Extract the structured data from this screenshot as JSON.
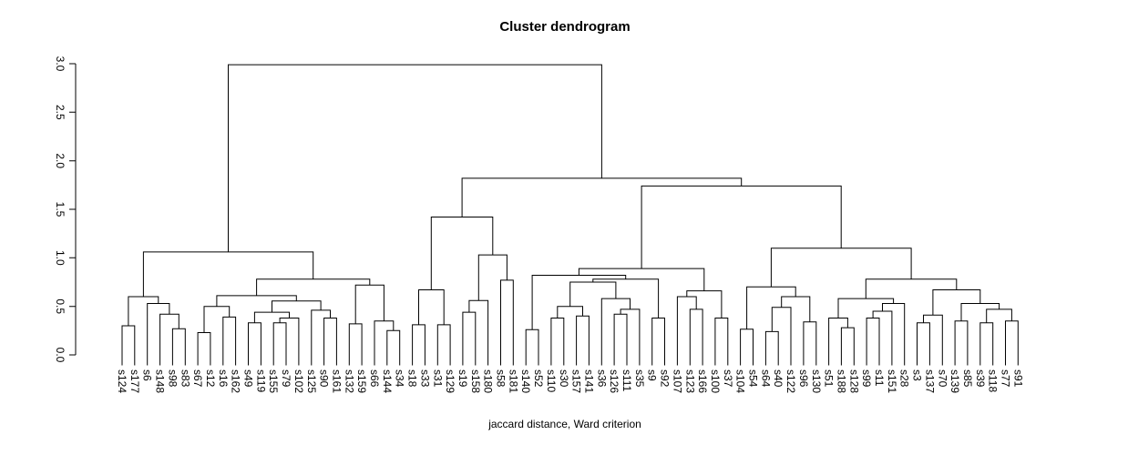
{
  "chart_data": {
    "type": "dendrogram",
    "title": "Cluster dendrogram",
    "xlabel": "jaccard distance, Ward criterion",
    "ylabel": "",
    "ylim": [
      0,
      3
    ],
    "yticks": [
      "0.0",
      "0.5",
      "1.0",
      "1.5",
      "2.0",
      "2.5",
      "3.0"
    ],
    "grid": false,
    "legend": "none",
    "colors": {
      "r": "#FF0000",
      "c": "#00FFFF"
    },
    "leaves": {
      "labels": [
        "s124",
        "s177",
        "s6",
        "s148",
        "s98",
        "s83",
        "s67",
        "s12",
        "s16",
        "s162",
        "s49",
        "s119",
        "s155",
        "s79",
        "s102",
        "s125",
        "s90",
        "s161",
        "s132",
        "s159",
        "s66",
        "s144",
        "s34",
        "s18",
        "s33",
        "s31",
        "s129",
        "s19",
        "s158",
        "s180",
        "s58",
        "s181",
        "s140",
        "s52",
        "s110",
        "s30",
        "s157",
        "s141",
        "s36",
        "s126",
        "s111",
        "s35",
        "s9",
        "s92",
        "s107",
        "s123",
        "s166",
        "s100",
        "s37",
        "s104",
        "s54",
        "s64",
        "s40",
        "s122",
        "s96",
        "s130",
        "s51",
        "s188",
        "s128",
        "s99",
        "s11",
        "s151",
        "s28",
        "s3",
        "s137",
        "s70",
        "s139",
        "s85",
        "s39",
        "s118",
        "s77",
        "s91"
      ],
      "colors": [
        "c",
        "c",
        "r",
        "c",
        "r",
        "r",
        "c",
        "c",
        "r",
        "r",
        "c",
        "r",
        "r",
        "r",
        "r",
        "c",
        "r",
        "r",
        "r",
        "c",
        "r",
        "r",
        "r",
        "r",
        "r",
        "r",
        "r",
        "r",
        "c",
        "r",
        "r",
        "r",
        "c",
        "c",
        "c",
        "c",
        "c",
        "c",
        "c",
        "r",
        "c",
        "r",
        "c",
        "r",
        "c",
        "c",
        "r",
        "r",
        "r",
        "c",
        "c",
        "c",
        "c",
        "c",
        "r",
        "c",
        "r",
        "c",
        "c",
        "r",
        "r",
        "r",
        "r",
        "c",
        "c",
        "c",
        "c",
        "c",
        "r",
        "c",
        "r",
        "c"
      ]
    },
    "tree": [
      2.99,
      [
        1.06,
        [
          0.6,
          [
            0.3,
            "s124",
            "s177"
          ],
          [
            0.53,
            "s6",
            [
              0.42,
              "s148",
              [
                0.27,
                "s98",
                "s83"
              ]
            ]
          ]
        ],
        [
          0.78,
          [
            0.61,
            [
              0.5,
              [
                0.23,
                "s67",
                "s12"
              ],
              [
                0.39,
                "s16",
                "s162"
              ]
            ],
            [
              0.555,
              [
                0.44,
                [
                  0.33,
                  "s49",
                  "s119"
                ],
                [
                  0.38,
                  [
                    0.33,
                    "s155",
                    "s79"
                  ],
                  "s102"
                ]
              ],
              [
                0.46,
                "s125",
                [
                  0.38,
                  "s90",
                  "s161"
                ]
              ]
            ]
          ],
          [
            0.72,
            [
              0.32,
              "s132",
              "s159"
            ],
            [
              0.35,
              "s66",
              [
                0.25,
                "s144",
                "s34"
              ]
            ]
          ]
        ]
      ],
      [
        1.82,
        [
          1.42,
          [
            0.67,
            [
              0.31,
              "s18",
              "s33"
            ],
            [
              0.31,
              "s31",
              "s129"
            ]
          ],
          [
            1.03,
            [
              0.56,
              [
                0.44,
                "s19",
                "s158"
              ],
              "s180"
            ],
            [
              0.77,
              "s58",
              "s181"
            ]
          ]
        ],
        [
          1.74,
          [
            0.89,
            [
              0.82,
              [
                0.26,
                "s140",
                "s52"
              ],
              [
                0.78,
                [
                  0.75,
                  [
                    0.5,
                    [
                      0.38,
                      "s110",
                      "s30"
                    ],
                    [
                      0.4,
                      "s157",
                      "s141"
                    ]
                  ],
                  [
                    0.58,
                    "s36",
                    [
                      0.47,
                      [
                        0.42,
                        "s126",
                        "s111"
                      ],
                      "s35"
                    ]
                  ]
                ],
                [
                  0.38,
                  "s9",
                  "s92"
                ]
              ]
            ],
            [
              0.66,
              [
                0.6,
                "s107",
                [
                  0.47,
                  "s123",
                  "s166"
                ]
              ],
              [
                0.38,
                "s100",
                "s37"
              ]
            ]
          ],
          [
            1.1,
            [
              0.7,
              [
                0.265,
                "s104",
                "s54"
              ],
              [
                0.6,
                [
                  0.49,
                  [
                    0.24,
                    "s64",
                    "s40"
                  ],
                  "s122"
                ],
                [
                  0.34,
                  "s96",
                  "s130"
                ]
              ]
            ],
            [
              0.78,
              [
                0.58,
                [
                  0.38,
                  "s51",
                  [
                    0.28,
                    "s188",
                    "s128"
                  ]
                ],
                [
                  0.53,
                  [
                    0.45,
                    [
                      0.38,
                      "s99",
                      "s11"
                    ],
                    "s151"
                  ],
                  "s28"
                ]
              ],
              [
                0.67,
                [
                  0.41,
                  [
                    0.33,
                    "s3",
                    "s137"
                  ],
                  "s70"
                ],
                [
                  0.53,
                  [
                    0.35,
                    "s139",
                    "s85"
                  ],
                  [
                    0.47,
                    [
                      0.33,
                      "s39",
                      "s118"
                    ],
                    [
                      0.35,
                      "s77",
                      "s91"
                    ]
                  ]
                ]
              ]
            ]
          ]
        ]
      ]
    ]
  }
}
